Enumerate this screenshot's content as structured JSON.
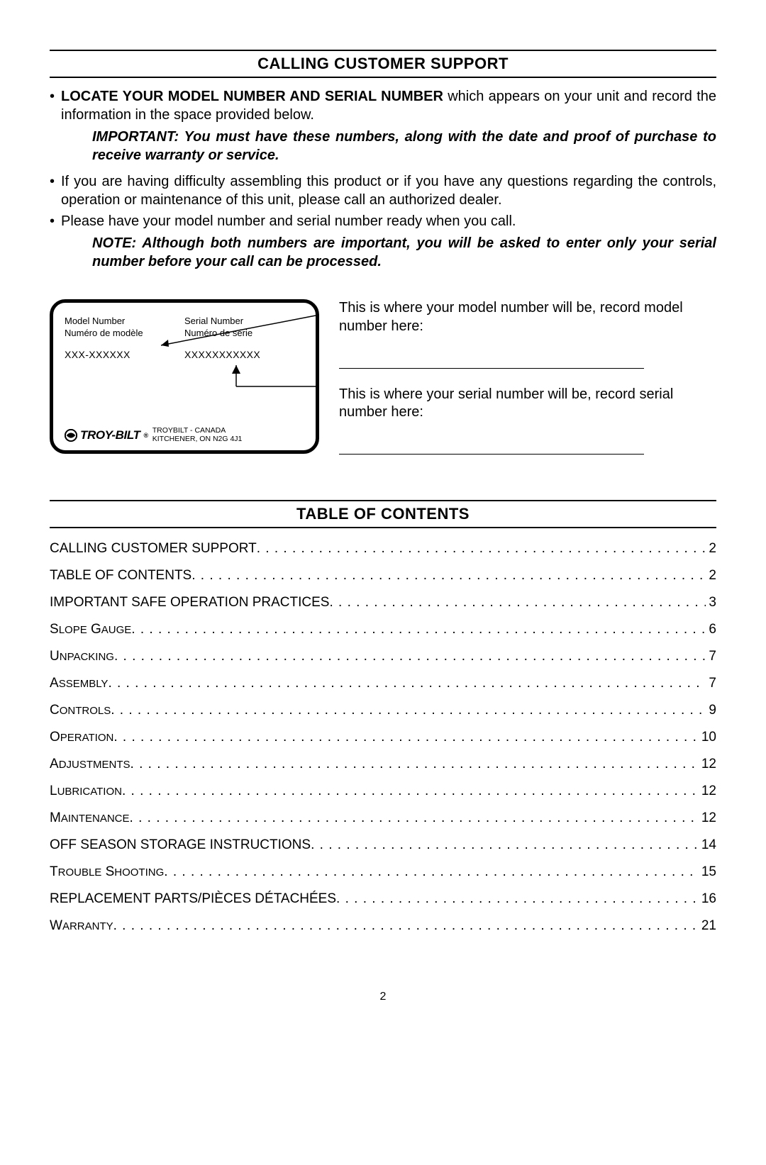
{
  "colors": {
    "text": "#000000",
    "background": "#ffffff",
    "rule": "#000000"
  },
  "typography": {
    "body_fontsize_pt": 15,
    "title_fontsize_pt": 17,
    "toc_fontsize_pt": 14
  },
  "section1": {
    "title": "CALLING CUSTOMER SUPPORT",
    "bullet1_strong": "LOCATE YOUR MODEL NUMBER AND SERIAL NUMBER",
    "bullet1_rest": " which appears on your unit and record the information in the space provided below.",
    "important_label": "IMPORTANT:",
    "important_body": " You must have these numbers, along with the date and proof of purchase to receive warranty or service.",
    "bullet2": "If you are having difficulty assembling this product or if you have any questions regarding the controls, operation or maintenance of this unit, please call an authorized dealer.",
    "bullet3": "Please have your model number and serial number ready when you call.",
    "note_label": "NOTE:",
    "note_body": " Although both numbers are important, you will be asked to enter only your serial number before your call can be processed."
  },
  "label_box": {
    "model_en": "Model Number",
    "model_fr": "Numéro de modèle",
    "serial_en": "Serial Number",
    "serial_fr": "Numéro de série",
    "model_placeholder": "XXX-XXXXXX",
    "serial_placeholder": "XXXXXXXXXXX",
    "brand_name": "TROY-BILT",
    "brand_addr_line1": "TROYBILT - CANADA",
    "brand_addr_line2": "KITCHENER, ON N2G 4J1"
  },
  "right_prompts": {
    "model_prompt": "This is where your model number will be, record model number here:",
    "serial_prompt": "This is where your serial number will be, record serial number here:"
  },
  "section2": {
    "title": "TABLE OF CONTENTS"
  },
  "toc": [
    {
      "label": "CALLING CUSTOMER SUPPORT",
      "page": "2",
      "smallcaps": false
    },
    {
      "label": "TABLE OF CONTENTS",
      "page": "2",
      "smallcaps": false
    },
    {
      "label": "IMPORTANT SAFE OPERATION PRACTICES",
      "page": "3",
      "smallcaps": false
    },
    {
      "label": "Slope Gauge",
      "page": "6",
      "smallcaps": true
    },
    {
      "label": "Unpacking",
      "page": "7",
      "smallcaps": true
    },
    {
      "label": "Assembly",
      "page": "7",
      "smallcaps": true
    },
    {
      "label": "Controls",
      "page": "9",
      "smallcaps": true
    },
    {
      "label": "Operation",
      "page": "10",
      "smallcaps": true
    },
    {
      "label": "Adjustments",
      "page": "12",
      "smallcaps": true
    },
    {
      "label": "Lubrication",
      "page": "12",
      "smallcaps": true
    },
    {
      "label": "Maintenance",
      "page": "12",
      "smallcaps": true
    },
    {
      "label": "OFF SEASON STORAGE INSTRUCTIONS",
      "page": "14",
      "smallcaps": false
    },
    {
      "label": "Trouble Shooting",
      "page": "15",
      "smallcaps": true
    },
    {
      "label": "REPLACEMENT PARTS/PIÈCES DÉTACHÉES",
      "page": "16",
      "smallcaps": false
    },
    {
      "label": "Warranty",
      "page": "21",
      "smallcaps": true
    }
  ],
  "page_number": "2"
}
